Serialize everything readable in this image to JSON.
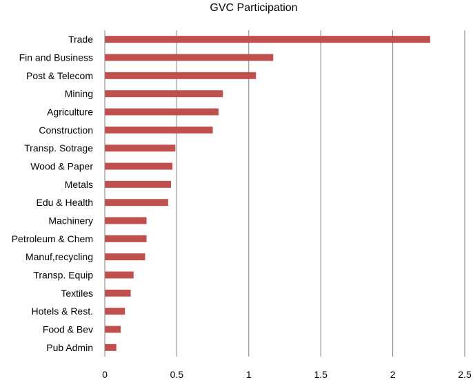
{
  "chart_data": {
    "type": "bar",
    "orientation": "horizontal",
    "title": "GVC Participation",
    "categories": [
      "Trade",
      "Fin and Business",
      "Post & Telecom",
      "Mining",
      "Agriculture",
      "Construction",
      "Transp. Sotrage",
      "Wood & Paper",
      "Metals",
      "Edu & Health",
      "Machinery",
      "Petroleum & Chem",
      "Manuf,recycling",
      "Transp. Equip",
      "Textiles",
      "Hotels & Rest.",
      "Food & Bev",
      "Pub Admin"
    ],
    "values": [
      2.26,
      1.17,
      1.05,
      0.82,
      0.79,
      0.75,
      0.49,
      0.47,
      0.46,
      0.44,
      0.29,
      0.29,
      0.28,
      0.2,
      0.18,
      0.14,
      0.11,
      0.08
    ],
    "xlim": [
      0,
      2.5
    ],
    "xticks": [
      "0",
      "0.5",
      "1",
      "1.5",
      "2",
      "2.5"
    ],
    "grid": "vertical",
    "legend": "none",
    "bar_color": "#c0504d"
  }
}
